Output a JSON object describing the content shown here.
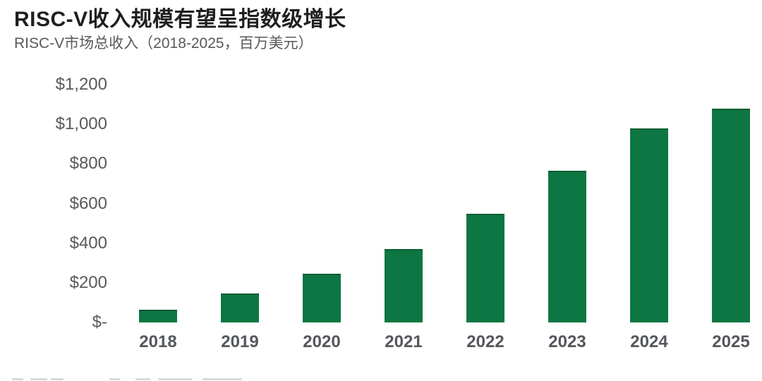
{
  "header": {
    "title": "RISC-V收入规模有望呈指数级增长",
    "subtitle": "RISC-V市场总收入（2018-2025，百万美元）"
  },
  "chart_data": {
    "type": "bar",
    "title": "RISC-V收入规模有望呈指数级增长",
    "subtitle": "RISC-V市场总收入（2018-2025，百万美元）",
    "categories": [
      "2018",
      "2019",
      "2020",
      "2021",
      "2022",
      "2023",
      "2024",
      "2025"
    ],
    "values": [
      65,
      145,
      245,
      370,
      550,
      765,
      980,
      1080
    ],
    "unit": "百万美元",
    "xlabel": "",
    "ylabel": "",
    "ylim": [
      0,
      1200
    ],
    "ytick_step": 200,
    "ytick_labels": [
      "$-",
      "$200",
      "$400",
      "$600",
      "$800",
      "$1,000",
      "$1,200"
    ],
    "grid": false,
    "legend": false,
    "bar_color": "#0d7642"
  },
  "colors": {
    "background": "#ffffff",
    "title": "#1f1f1f",
    "subtitle": "#595959",
    "y_tick": "#595959",
    "x_tick": "#54575c",
    "bar": "#0d7642"
  }
}
